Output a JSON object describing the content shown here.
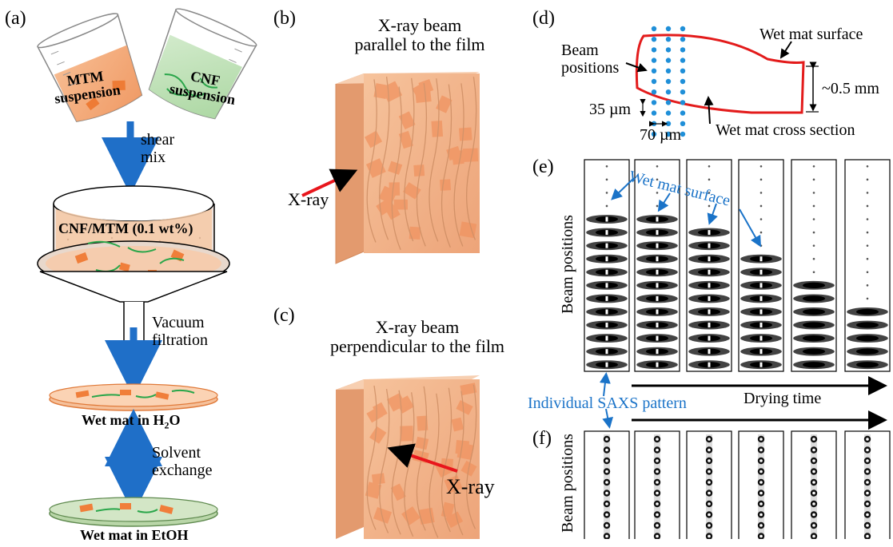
{
  "panels": {
    "a": "(a)",
    "b": "(b)",
    "c": "(c)",
    "d": "(d)",
    "e": "(e)",
    "f": "(f)"
  },
  "panel_a": {
    "mtm_line1": "MTM",
    "mtm_line2": "suspension",
    "cnf_line1": "CNF",
    "cnf_line2": "suspension",
    "shear_line1": "shear",
    "shear_line2": "mix",
    "funnel_label": "CNF/MTM (0.1 wt%)",
    "vacuum_line1": "Vacuum",
    "vacuum_line2": "filtration",
    "wet_mat_h2o_pre": "Wet mat in H",
    "wet_mat_h2o_sub": "2",
    "wet_mat_h2o_post": "O",
    "solvent_line1": "Solvent",
    "solvent_line2": "exchange",
    "wet_mat_etoh": "Wet mat in EtOH",
    "colors": {
      "mtm": "#f4a56e",
      "cnf": "#b9dfb2",
      "fiber": "#2aa64a",
      "platelet": "#f07e3a",
      "arrow": "#1f6fc8"
    }
  },
  "panel_b": {
    "title_line1": "X-ray beam",
    "title_line2": "parallel to the film",
    "xray": "X-ray"
  },
  "panel_c": {
    "title_line1": "X-ray beam",
    "title_line2": "perpendicular to the film",
    "xray": "X-ray"
  },
  "panel_d": {
    "beam_line1": "Beam",
    "beam_line2": "positions",
    "wet_surface": "Wet mat surface",
    "thickness": "~0.5 mm",
    "step_v": "35 µm",
    "step_h": "70 µm",
    "cross_section": "Wet mat cross section",
    "colors": {
      "outline": "#e31b1b",
      "dots": "#1f8fd8"
    }
  },
  "panel_e": {
    "ylabel": "Beam positions",
    "annotation": "Wet mat surface",
    "frames": 6,
    "wet_rows": [
      12,
      12,
      11,
      9,
      7,
      5
    ]
  },
  "bottom": {
    "individual": "Individual SAXS pattern",
    "drying": "Drying time"
  },
  "panel_f": {
    "ylabel": "Beam positions",
    "frames": 6
  },
  "colors": {
    "film": "#f2b48a",
    "xray_arrow": "#e8161c",
    "annot_blue": "#1a73c8"
  }
}
